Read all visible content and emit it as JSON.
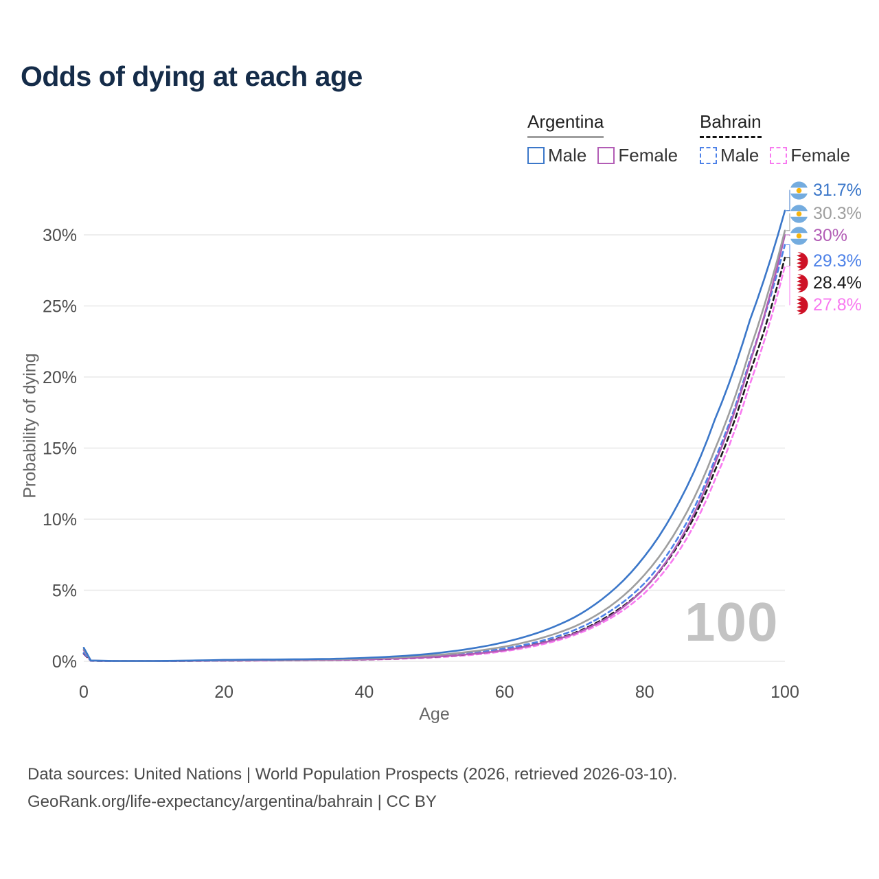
{
  "title": "Odds of dying at each age",
  "legend": {
    "groups": [
      {
        "label": "Argentina",
        "style": "solid",
        "underline_color": "#9e9e9e",
        "items": [
          {
            "label": "Male",
            "color": "#3b77c9"
          },
          {
            "label": "Female",
            "color": "#b25cb5"
          }
        ]
      },
      {
        "label": "Bahrain",
        "style": "dashed",
        "underline_color": "#111111",
        "items": [
          {
            "label": "Male",
            "color": "#4e82e8"
          },
          {
            "label": "Female",
            "color": "#f87af0"
          }
        ]
      }
    ]
  },
  "watermark": "100",
  "footer": {
    "line1": "Data sources: United Nations | World Population Prospects (2026, retrieved 2026-03-10).",
    "line2": "GeoRank.org/life-expectancy/argentina/bahrain | CC BY"
  },
  "chart_data": {
    "type": "line",
    "title": "Odds of dying at each age",
    "xlabel": "Age",
    "ylabel": "Probability of dying",
    "xlim": [
      0,
      100
    ],
    "ylim": [
      0,
      33
    ],
    "grid": true,
    "legend_position": "top-right",
    "x_ticks": [
      0,
      20,
      40,
      60,
      80,
      100
    ],
    "y_ticks": [
      0,
      5,
      10,
      15,
      20,
      25,
      30
    ],
    "y_tick_labels": [
      "0%",
      "5%",
      "10%",
      "15%",
      "20%",
      "25%",
      "30%"
    ],
    "series": [
      {
        "name": "Argentina Male",
        "flag": "argentina",
        "color": "#3b77c9",
        "dash": "solid",
        "end_label": "31.7%",
        "end_value": 31.7,
        "points": [
          [
            0,
            0.95
          ],
          [
            1,
            0.06
          ],
          [
            5,
            0.025
          ],
          [
            10,
            0.025
          ],
          [
            15,
            0.055
          ],
          [
            20,
            0.1
          ],
          [
            25,
            0.12
          ],
          [
            30,
            0.14
          ],
          [
            35,
            0.17
          ],
          [
            40,
            0.24
          ],
          [
            45,
            0.36
          ],
          [
            50,
            0.56
          ],
          [
            55,
            0.88
          ],
          [
            60,
            1.35
          ],
          [
            65,
            2.05
          ],
          [
            70,
            3.1
          ],
          [
            75,
            4.8
          ],
          [
            80,
            7.4
          ],
          [
            85,
            11.3
          ],
          [
            90,
            17.0
          ],
          [
            95,
            24.0
          ],
          [
            100,
            31.7
          ]
        ]
      },
      {
        "name": "Argentina",
        "flag": "argentina",
        "color": "#9e9e9e",
        "dash": "solid",
        "end_label": "30.3%",
        "end_value": 30.3,
        "points": [
          [
            0,
            0.85
          ],
          [
            1,
            0.055
          ],
          [
            5,
            0.02
          ],
          [
            10,
            0.02
          ],
          [
            15,
            0.045
          ],
          [
            20,
            0.08
          ],
          [
            25,
            0.095
          ],
          [
            30,
            0.11
          ],
          [
            35,
            0.14
          ],
          [
            40,
            0.19
          ],
          [
            45,
            0.28
          ],
          [
            50,
            0.43
          ],
          [
            55,
            0.67
          ],
          [
            60,
            1.03
          ],
          [
            65,
            1.6
          ],
          [
            70,
            2.45
          ],
          [
            75,
            3.85
          ],
          [
            80,
            6.1
          ],
          [
            85,
            9.6
          ],
          [
            90,
            14.9
          ],
          [
            95,
            21.9
          ],
          [
            100,
            30.3
          ]
        ]
      },
      {
        "name": "Argentina Female",
        "flag": "argentina",
        "color": "#b25cb5",
        "dash": "solid",
        "end_label": "30%",
        "end_value": 30.0,
        "points": [
          [
            0,
            0.78
          ],
          [
            1,
            0.05
          ],
          [
            5,
            0.018
          ],
          [
            10,
            0.018
          ],
          [
            15,
            0.035
          ],
          [
            20,
            0.055
          ],
          [
            25,
            0.065
          ],
          [
            30,
            0.08
          ],
          [
            35,
            0.1
          ],
          [
            40,
            0.14
          ],
          [
            45,
            0.21
          ],
          [
            50,
            0.32
          ],
          [
            55,
            0.5
          ],
          [
            60,
            0.78
          ],
          [
            65,
            1.25
          ],
          [
            70,
            1.95
          ],
          [
            75,
            3.15
          ],
          [
            80,
            5.15
          ],
          [
            85,
            8.5
          ],
          [
            90,
            13.9
          ],
          [
            95,
            21.0
          ],
          [
            100,
            30.0
          ]
        ]
      },
      {
        "name": "Bahrain Male",
        "flag": "bahrain",
        "color": "#4e82e8",
        "dash": "dashed",
        "end_label": "29.3%",
        "end_value": 29.3,
        "points": [
          [
            0,
            0.6
          ],
          [
            1,
            0.04
          ],
          [
            5,
            0.015
          ],
          [
            10,
            0.015
          ],
          [
            15,
            0.03
          ],
          [
            20,
            0.055
          ],
          [
            25,
            0.07
          ],
          [
            30,
            0.085
          ],
          [
            35,
            0.11
          ],
          [
            40,
            0.15
          ],
          [
            45,
            0.23
          ],
          [
            50,
            0.36
          ],
          [
            55,
            0.57
          ],
          [
            60,
            0.9
          ],
          [
            65,
            1.4
          ],
          [
            70,
            2.2
          ],
          [
            75,
            3.5
          ],
          [
            80,
            5.5
          ],
          [
            85,
            8.9
          ],
          [
            90,
            14.2
          ],
          [
            95,
            21.2
          ],
          [
            100,
            29.3
          ]
        ]
      },
      {
        "name": "Bahrain",
        "flag": "bahrain",
        "color": "#1a1a1a",
        "dash": "dashed",
        "end_label": "28.4%",
        "end_value": 28.4,
        "points": [
          [
            0,
            0.55
          ],
          [
            1,
            0.038
          ],
          [
            5,
            0.014
          ],
          [
            10,
            0.014
          ],
          [
            15,
            0.028
          ],
          [
            20,
            0.05
          ],
          [
            25,
            0.062
          ],
          [
            30,
            0.075
          ],
          [
            35,
            0.095
          ],
          [
            40,
            0.13
          ],
          [
            45,
            0.2
          ],
          [
            50,
            0.31
          ],
          [
            55,
            0.5
          ],
          [
            60,
            0.8
          ],
          [
            65,
            1.27
          ],
          [
            70,
            2.0
          ],
          [
            75,
            3.25
          ],
          [
            80,
            5.15
          ],
          [
            85,
            8.35
          ],
          [
            90,
            13.4
          ],
          [
            95,
            20.3
          ],
          [
            100,
            28.4
          ]
        ]
      },
      {
        "name": "Bahrain Female",
        "flag": "bahrain",
        "color": "#f87af0",
        "dash": "dashed",
        "end_label": "27.8%",
        "end_value": 27.8,
        "points": [
          [
            0,
            0.5
          ],
          [
            1,
            0.035
          ],
          [
            5,
            0.013
          ],
          [
            10,
            0.013
          ],
          [
            15,
            0.025
          ],
          [
            20,
            0.04
          ],
          [
            25,
            0.05
          ],
          [
            30,
            0.065
          ],
          [
            35,
            0.085
          ],
          [
            40,
            0.115
          ],
          [
            45,
            0.175
          ],
          [
            50,
            0.27
          ],
          [
            55,
            0.44
          ],
          [
            60,
            0.71
          ],
          [
            65,
            1.15
          ],
          [
            70,
            1.85
          ],
          [
            75,
            3.0
          ],
          [
            80,
            4.8
          ],
          [
            85,
            7.85
          ],
          [
            90,
            12.75
          ],
          [
            95,
            19.5
          ],
          [
            100,
            27.8
          ]
        ]
      }
    ]
  }
}
